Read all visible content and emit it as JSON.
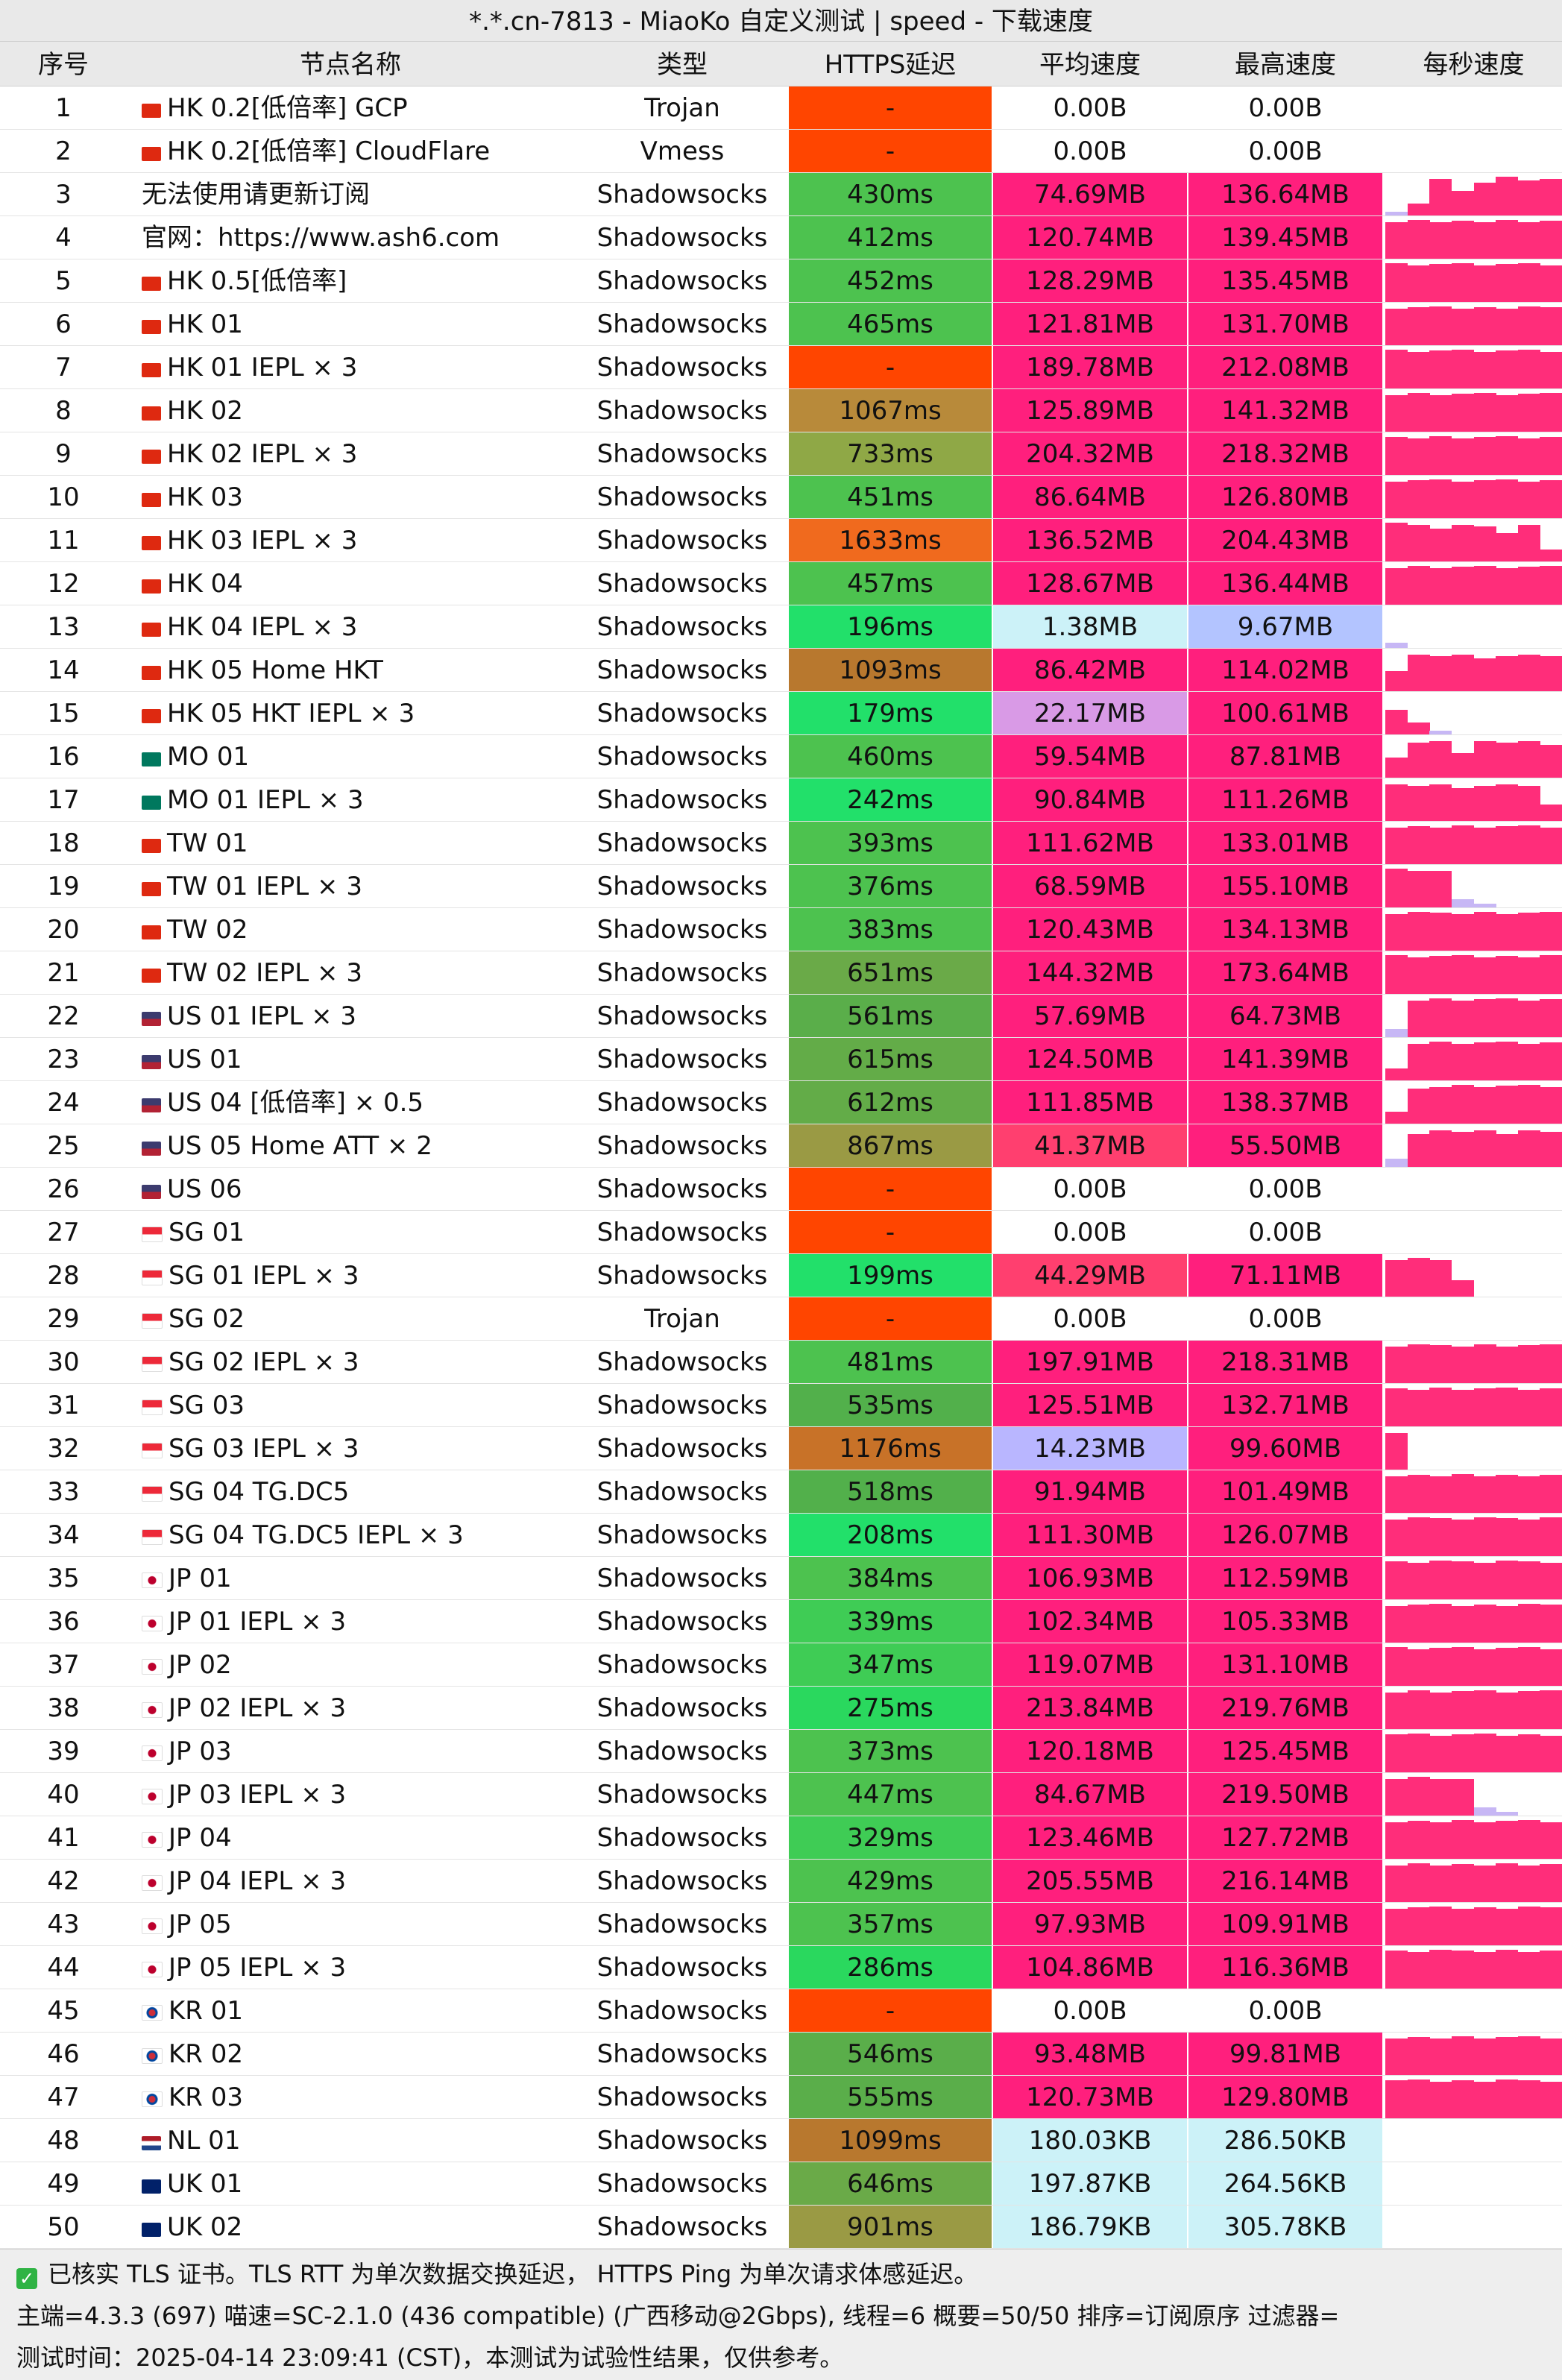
{
  "title": "*.*.cn-7813 - MiaoKo 自定义测试 | speed - 下载速度",
  "columns": [
    "序号",
    "节点名称",
    "类型",
    "HTTPS延迟",
    "平均速度",
    "最高速度",
    "每秒速度"
  ],
  "watermark": "MiaoKo",
  "colors": {
    "latency_fail": "#ff4500",
    "avg_high": "#ff1f7d",
    "avg_very_low": "#ccf2f8",
    "avg_low_purple": "#b9b6ff",
    "avg_low_violet": "#d99ae6",
    "spark": "#ff2d7a"
  },
  "rows": [
    {
      "idx": "1",
      "flag": "hk",
      "name": "HK 0.2[低倍率] GCP",
      "type": "Trojan",
      "lat": "-",
      "lat_color": "#ff4500",
      "avg": "0.00B",
      "avg_color": "#ffffff",
      "max": "0.00B",
      "max_color": "#ffffff",
      "spark": []
    },
    {
      "idx": "2",
      "flag": "hk",
      "name": "HK 0.2[低倍率] CloudFlare",
      "type": "Vmess",
      "lat": "-",
      "lat_color": "#ff4500",
      "avg": "0.00B",
      "avg_color": "#ffffff",
      "max": "0.00B",
      "max_color": "#ffffff",
      "spark": []
    },
    {
      "idx": "3",
      "flag": "",
      "name": "无法使用请更新订阅",
      "type": "Shadowsocks",
      "lat": "430ms",
      "lat_color": "#4dc24f",
      "avg": "74.69MB",
      "avg_color": "#ff1f7d",
      "max": "136.64MB",
      "max_color": "#ff1f7d",
      "spark": [
        0.1,
        0.3,
        0.9,
        0.6,
        0.8,
        0.95,
        0.85,
        0.9
      ]
    },
    {
      "idx": "4",
      "flag": "",
      "name": "官网：https://www.ash6.com",
      "type": "Shadowsocks",
      "lat": "412ms",
      "lat_color": "#4dc24f",
      "avg": "120.74MB",
      "avg_color": "#ff1f7d",
      "max": "139.45MB",
      "max_color": "#ff1f7d",
      "spark": [
        0.9,
        0.95,
        0.9,
        0.92,
        0.9,
        0.95,
        0.9,
        0.93
      ]
    },
    {
      "idx": "5",
      "flag": "hk",
      "name": "HK 0.5[低倍率]",
      "type": "Shadowsocks",
      "lat": "452ms",
      "lat_color": "#4dc24f",
      "avg": "128.29MB",
      "avg_color": "#ff1f7d",
      "max": "135.45MB",
      "max_color": "#ff1f7d",
      "spark": [
        0.95,
        0.9,
        0.92,
        0.95,
        0.9,
        0.93,
        0.95,
        0.9
      ]
    },
    {
      "idx": "6",
      "flag": "hk",
      "name": "HK 01",
      "type": "Shadowsocks",
      "lat": "465ms",
      "lat_color": "#4dc24f",
      "avg": "121.81MB",
      "avg_color": "#ff1f7d",
      "max": "131.70MB",
      "max_color": "#ff1f7d",
      "spark": [
        0.9,
        0.92,
        0.95,
        0.9,
        0.93,
        0.9,
        0.95,
        0.92
      ]
    },
    {
      "idx": "7",
      "flag": "hk",
      "name": "HK 01 IEPL × 3",
      "type": "Shadowsocks",
      "lat": "-",
      "lat_color": "#ff4500",
      "avg": "189.78MB",
      "avg_color": "#ff1f7d",
      "max": "212.08MB",
      "max_color": "#ff1f7d",
      "spark": [
        0.95,
        0.9,
        0.93,
        0.95,
        0.9,
        0.92,
        0.95,
        0.9
      ]
    },
    {
      "idx": "8",
      "flag": "hk",
      "name": "HK 02",
      "type": "Shadowsocks",
      "lat": "1067ms",
      "lat_color": "#b88a3a",
      "avg": "125.89MB",
      "avg_color": "#ff1f7d",
      "max": "141.32MB",
      "max_color": "#ff1f7d",
      "spark": [
        0.9,
        0.95,
        0.9,
        0.92,
        0.95,
        0.9,
        0.93,
        0.95
      ]
    },
    {
      "idx": "9",
      "flag": "hk",
      "name": "HK 02 IEPL × 3",
      "type": "Shadowsocks",
      "lat": "733ms",
      "lat_color": "#8fa846",
      "avg": "204.32MB",
      "avg_color": "#ff1f7d",
      "max": "218.32MB",
      "max_color": "#ff1f7d",
      "spark": [
        0.92,
        0.9,
        0.95,
        0.9,
        0.93,
        0.95,
        0.9,
        0.92
      ]
    },
    {
      "idx": "10",
      "flag": "hk",
      "name": "HK 03",
      "type": "Shadowsocks",
      "lat": "451ms",
      "lat_color": "#4dc24f",
      "avg": "86.64MB",
      "avg_color": "#ff1f7d",
      "max": "126.80MB",
      "max_color": "#ff1f7d",
      "spark": [
        0.9,
        0.92,
        0.95,
        0.9,
        0.92,
        0.95,
        0.9,
        0.93
      ]
    },
    {
      "idx": "11",
      "flag": "hk",
      "name": "HK 03 IEPL × 3",
      "type": "Shadowsocks",
      "lat": "1633ms",
      "lat_color": "#f06a1e",
      "avg": "136.52MB",
      "avg_color": "#ff1f7d",
      "max": "204.43MB",
      "max_color": "#ff1f7d",
      "spark": [
        0.95,
        0.9,
        0.8,
        0.9,
        0.85,
        0.7,
        0.9,
        0.3
      ]
    },
    {
      "idx": "12",
      "flag": "hk",
      "name": "HK 04",
      "type": "Shadowsocks",
      "lat": "457ms",
      "lat_color": "#4dc24f",
      "avg": "128.67MB",
      "avg_color": "#ff1f7d",
      "max": "136.44MB",
      "max_color": "#ff1f7d",
      "spark": [
        0.9,
        0.95,
        0.9,
        0.93,
        0.95,
        0.9,
        0.92,
        0.95
      ]
    },
    {
      "idx": "13",
      "flag": "hk",
      "name": "HK 04 IEPL × 3",
      "type": "Shadowsocks",
      "lat": "196ms",
      "lat_color": "#22e06a",
      "avg": "1.38MB",
      "avg_color": "#ccf2f8",
      "max": "9.67MB",
      "max_color": "#b3c4ff",
      "spark": [
        0.12,
        0.0,
        0.0,
        0.0,
        0.0,
        0.0,
        0.0,
        0.0
      ]
    },
    {
      "idx": "14",
      "flag": "hk",
      "name": "HK 05 Home HKT",
      "type": "Shadowsocks",
      "lat": "1093ms",
      "lat_color": "#b8782e",
      "avg": "86.42MB",
      "avg_color": "#ff1f7d",
      "max": "114.02MB",
      "max_color": "#ff1f7d",
      "spark": [
        0.5,
        0.9,
        0.85,
        0.9,
        0.8,
        0.85,
        0.9,
        0.85
      ]
    },
    {
      "idx": "15",
      "flag": "hk",
      "name": "HK 05 HKT IEPL × 3",
      "type": "Shadowsocks",
      "lat": "179ms",
      "lat_color": "#22e06a",
      "avg": "22.17MB",
      "avg_color": "#d99ae6",
      "max": "100.61MB",
      "max_color": "#ff1f7d",
      "spark": [
        0.6,
        0.3,
        0.1,
        0.0,
        0.0,
        0.0,
        0.0,
        0.0
      ]
    },
    {
      "idx": "16",
      "flag": "mo",
      "name": "MO 01",
      "type": "Shadowsocks",
      "lat": "460ms",
      "lat_color": "#4dc24f",
      "avg": "59.54MB",
      "avg_color": "#ff1f7d",
      "max": "87.81MB",
      "max_color": "#ff1f7d",
      "spark": [
        0.5,
        0.85,
        0.9,
        0.6,
        0.9,
        0.85,
        0.9,
        0.8
      ]
    },
    {
      "idx": "17",
      "flag": "mo",
      "name": "MO 01 IEPL × 3",
      "type": "Shadowsocks",
      "lat": "242ms",
      "lat_color": "#22e06a",
      "avg": "90.84MB",
      "avg_color": "#ff1f7d",
      "max": "111.26MB",
      "max_color": "#ff1f7d",
      "spark": [
        0.9,
        0.85,
        0.9,
        0.8,
        0.85,
        0.9,
        0.85,
        0.4
      ]
    },
    {
      "idx": "18",
      "flag": "tw",
      "name": "TW 01",
      "type": "Shadowsocks",
      "lat": "393ms",
      "lat_color": "#4dc24f",
      "avg": "111.62MB",
      "avg_color": "#ff1f7d",
      "max": "133.01MB",
      "max_color": "#ff1f7d",
      "spark": [
        0.9,
        0.92,
        0.9,
        0.95,
        0.9,
        0.92,
        0.95,
        0.9
      ]
    },
    {
      "idx": "19",
      "flag": "tw",
      "name": "TW 01 IEPL × 3",
      "type": "Shadowsocks",
      "lat": "376ms",
      "lat_color": "#4dc24f",
      "avg": "68.59MB",
      "avg_color": "#ff1f7d",
      "max": "155.10MB",
      "max_color": "#ff1f7d",
      "spark": [
        0.95,
        0.9,
        0.9,
        0.2,
        0.1,
        0.0,
        0.0,
        0.0
      ]
    },
    {
      "idx": "20",
      "flag": "tw",
      "name": "TW 02",
      "type": "Shadowsocks",
      "lat": "383ms",
      "lat_color": "#4dc24f",
      "avg": "120.43MB",
      "avg_color": "#ff1f7d",
      "max": "134.13MB",
      "max_color": "#ff1f7d",
      "spark": [
        0.9,
        0.95,
        0.92,
        0.9,
        0.95,
        0.9,
        0.92,
        0.95
      ]
    },
    {
      "idx": "21",
      "flag": "tw",
      "name": "TW 02 IEPL × 3",
      "type": "Shadowsocks",
      "lat": "651ms",
      "lat_color": "#6aaa48",
      "avg": "144.32MB",
      "avg_color": "#ff1f7d",
      "max": "173.64MB",
      "max_color": "#ff1f7d",
      "spark": [
        0.95,
        0.9,
        0.92,
        0.95,
        0.9,
        0.93,
        0.9,
        0.95
      ]
    },
    {
      "idx": "22",
      "flag": "us",
      "name": "US 01 IEPL × 3",
      "type": "Shadowsocks",
      "lat": "561ms",
      "lat_color": "#5aae4a",
      "avg": "57.69MB",
      "avg_color": "#ff1f7d",
      "max": "64.73MB",
      "max_color": "#ff1f7d",
      "spark": [
        0.2,
        0.9,
        0.95,
        0.9,
        0.92,
        0.95,
        0.9,
        0.93
      ]
    },
    {
      "idx": "23",
      "flag": "us",
      "name": "US 01",
      "type": "Shadowsocks",
      "lat": "615ms",
      "lat_color": "#63ac48",
      "avg": "124.50MB",
      "avg_color": "#ff1f7d",
      "max": "141.39MB",
      "max_color": "#ff1f7d",
      "spark": [
        0.3,
        0.9,
        0.95,
        0.9,
        0.93,
        0.95,
        0.9,
        0.92
      ]
    },
    {
      "idx": "24",
      "flag": "us",
      "name": "US 04 [低倍率] × 0.5",
      "type": "Shadowsocks",
      "lat": "612ms",
      "lat_color": "#63ac48",
      "avg": "111.85MB",
      "avg_color": "#ff1f7d",
      "max": "138.37MB",
      "max_color": "#ff1f7d",
      "spark": [
        0.3,
        0.85,
        0.9,
        0.95,
        0.9,
        0.92,
        0.95,
        0.9
      ]
    },
    {
      "idx": "25",
      "flag": "us",
      "name": "US 05 Home ATT × 2",
      "type": "Shadowsocks",
      "lat": "867ms",
      "lat_color": "#9a9a44",
      "avg": "41.37MB",
      "avg_color": "#ff3f6f",
      "max": "55.50MB",
      "max_color": "#ff1f7d",
      "spark": [
        0.2,
        0.8,
        0.9,
        0.85,
        0.9,
        0.8,
        0.9,
        0.85
      ]
    },
    {
      "idx": "26",
      "flag": "us",
      "name": "US 06",
      "type": "Shadowsocks",
      "lat": "-",
      "lat_color": "#ff4500",
      "avg": "0.00B",
      "avg_color": "#ffffff",
      "max": "0.00B",
      "max_color": "#ffffff",
      "spark": []
    },
    {
      "idx": "27",
      "flag": "sg",
      "name": "SG 01",
      "type": "Shadowsocks",
      "lat": "-",
      "lat_color": "#ff4500",
      "avg": "0.00B",
      "avg_color": "#ffffff",
      "max": "0.00B",
      "max_color": "#ffffff",
      "spark": []
    },
    {
      "idx": "28",
      "flag": "sg",
      "name": "SG 01 IEPL × 3",
      "type": "Shadowsocks",
      "lat": "199ms",
      "lat_color": "#22e06a",
      "avg": "44.29MB",
      "avg_color": "#ff3f6f",
      "max": "71.11MB",
      "max_color": "#ff1f7d",
      "spark": [
        0.9,
        0.95,
        0.9,
        0.4,
        0.0,
        0.0,
        0.0,
        0.0
      ]
    },
    {
      "idx": "29",
      "flag": "sg",
      "name": "SG 02",
      "type": "Trojan",
      "lat": "-",
      "lat_color": "#ff4500",
      "avg": "0.00B",
      "avg_color": "#ffffff",
      "max": "0.00B",
      "max_color": "#ffffff",
      "spark": []
    },
    {
      "idx": "30",
      "flag": "sg",
      "name": "SG 02 IEPL × 3",
      "type": "Shadowsocks",
      "lat": "481ms",
      "lat_color": "#4dc24f",
      "avg": "197.91MB",
      "avg_color": "#ff1f7d",
      "max": "218.31MB",
      "max_color": "#ff1f7d",
      "spark": [
        0.9,
        0.95,
        0.92,
        0.9,
        0.95,
        0.9,
        0.92,
        0.95
      ]
    },
    {
      "idx": "31",
      "flag": "sg",
      "name": "SG 03",
      "type": "Shadowsocks",
      "lat": "535ms",
      "lat_color": "#52b04b",
      "avg": "125.51MB",
      "avg_color": "#ff1f7d",
      "max": "132.71MB",
      "max_color": "#ff1f7d",
      "spark": [
        0.92,
        0.9,
        0.95,
        0.9,
        0.92,
        0.95,
        0.9,
        0.92
      ]
    },
    {
      "idx": "32",
      "flag": "sg",
      "name": "SG 03 IEPL × 3",
      "type": "Shadowsocks",
      "lat": "1176ms",
      "lat_color": "#c87228",
      "avg": "14.23MB",
      "avg_color": "#b9b6ff",
      "max": "99.60MB",
      "max_color": "#ff1f7d",
      "spark": [
        0.9,
        0.0,
        0.0,
        0.0,
        0.0,
        0.0,
        0.0,
        0.0
      ]
    },
    {
      "idx": "33",
      "flag": "sg",
      "name": "SG 04 TG.DC5",
      "type": "Shadowsocks",
      "lat": "518ms",
      "lat_color": "#52b04b",
      "avg": "91.94MB",
      "avg_color": "#ff1f7d",
      "max": "101.49MB",
      "max_color": "#ff1f7d",
      "spark": [
        0.9,
        0.92,
        0.9,
        0.95,
        0.9,
        0.92,
        0.9,
        0.93
      ]
    },
    {
      "idx": "34",
      "flag": "sg",
      "name": "SG 04 TG.DC5 IEPL × 3",
      "type": "Shadowsocks",
      "lat": "208ms",
      "lat_color": "#22e06a",
      "avg": "111.30MB",
      "avg_color": "#ff1f7d",
      "max": "126.07MB",
      "max_color": "#ff1f7d",
      "spark": [
        0.9,
        0.95,
        0.92,
        0.9,
        0.95,
        0.92,
        0.9,
        0.95
      ]
    },
    {
      "idx": "35",
      "flag": "jp",
      "name": "JP 01",
      "type": "Shadowsocks",
      "lat": "384ms",
      "lat_color": "#4dc24f",
      "avg": "106.93MB",
      "avg_color": "#ff1f7d",
      "max": "112.59MB",
      "max_color": "#ff1f7d",
      "spark": [
        0.92,
        0.9,
        0.95,
        0.92,
        0.9,
        0.95,
        0.92,
        0.9
      ]
    },
    {
      "idx": "36",
      "flag": "jp",
      "name": "JP 01 IEPL × 3",
      "type": "Shadowsocks",
      "lat": "339ms",
      "lat_color": "#3fcc55",
      "avg": "102.34MB",
      "avg_color": "#ff1f7d",
      "max": "105.33MB",
      "max_color": "#ff1f7d",
      "spark": [
        0.9,
        0.92,
        0.95,
        0.9,
        0.92,
        0.9,
        0.95,
        0.92
      ]
    },
    {
      "idx": "37",
      "flag": "jp",
      "name": "JP 02",
      "type": "Shadowsocks",
      "lat": "347ms",
      "lat_color": "#3fcc55",
      "avg": "119.07MB",
      "avg_color": "#ff1f7d",
      "max": "131.10MB",
      "max_color": "#ff1f7d",
      "spark": [
        0.95,
        0.9,
        0.92,
        0.95,
        0.9,
        0.92,
        0.95,
        0.9
      ]
    },
    {
      "idx": "38",
      "flag": "jp",
      "name": "JP 02 IEPL × 3",
      "type": "Shadowsocks",
      "lat": "275ms",
      "lat_color": "#2ad85e",
      "avg": "213.84MB",
      "avg_color": "#ff1f7d",
      "max": "219.76MB",
      "max_color": "#ff1f7d",
      "spark": [
        0.9,
        0.95,
        0.9,
        0.92,
        0.95,
        0.9,
        0.92,
        0.95
      ]
    },
    {
      "idx": "39",
      "flag": "jp",
      "name": "JP 03",
      "type": "Shadowsocks",
      "lat": "373ms",
      "lat_color": "#4dc24f",
      "avg": "120.18MB",
      "avg_color": "#ff1f7d",
      "max": "125.45MB",
      "max_color": "#ff1f7d",
      "spark": [
        0.92,
        0.95,
        0.9,
        0.92,
        0.95,
        0.9,
        0.93,
        0.9
      ]
    },
    {
      "idx": "40",
      "flag": "jp",
      "name": "JP 03 IEPL × 3",
      "type": "Shadowsocks",
      "lat": "447ms",
      "lat_color": "#4dc24f",
      "avg": "84.67MB",
      "avg_color": "#ff1f7d",
      "max": "219.50MB",
      "max_color": "#ff1f7d",
      "spark": [
        0.9,
        0.95,
        0.9,
        0.9,
        0.2,
        0.1,
        0.0,
        0.0
      ]
    },
    {
      "idx": "41",
      "flag": "jp",
      "name": "JP 04",
      "type": "Shadowsocks",
      "lat": "329ms",
      "lat_color": "#3fcc55",
      "avg": "123.46MB",
      "avg_color": "#ff1f7d",
      "max": "127.72MB",
      "max_color": "#ff1f7d",
      "spark": [
        0.9,
        0.92,
        0.9,
        0.95,
        0.9,
        0.92,
        0.95,
        0.9
      ]
    },
    {
      "idx": "42",
      "flag": "jp",
      "name": "JP 04 IEPL × 3",
      "type": "Shadowsocks",
      "lat": "429ms",
      "lat_color": "#4dc24f",
      "avg": "205.55MB",
      "avg_color": "#ff1f7d",
      "max": "216.14MB",
      "max_color": "#ff1f7d",
      "spark": [
        0.9,
        0.95,
        0.9,
        0.92,
        0.9,
        0.95,
        0.9,
        0.92
      ]
    },
    {
      "idx": "43",
      "flag": "jp",
      "name": "JP 05",
      "type": "Shadowsocks",
      "lat": "357ms",
      "lat_color": "#4dc24f",
      "avg": "97.93MB",
      "avg_color": "#ff1f7d",
      "max": "109.91MB",
      "max_color": "#ff1f7d",
      "spark": [
        0.9,
        0.92,
        0.95,
        0.9,
        0.92,
        0.9,
        0.95,
        0.92
      ]
    },
    {
      "idx": "44",
      "flag": "jp",
      "name": "JP 05 IEPL × 3",
      "type": "Shadowsocks",
      "lat": "286ms",
      "lat_color": "#2ad85e",
      "avg": "104.86MB",
      "avg_color": "#ff1f7d",
      "max": "116.36MB",
      "max_color": "#ff1f7d",
      "spark": [
        0.92,
        0.9,
        0.95,
        0.92,
        0.9,
        0.95,
        0.9,
        0.92
      ]
    },
    {
      "idx": "45",
      "flag": "kr",
      "name": "KR 01",
      "type": "Shadowsocks",
      "lat": "-",
      "lat_color": "#ff4500",
      "avg": "0.00B",
      "avg_color": "#ffffff",
      "max": "0.00B",
      "max_color": "#ffffff",
      "spark": []
    },
    {
      "idx": "46",
      "flag": "kr",
      "name": "KR 02",
      "type": "Shadowsocks",
      "lat": "546ms",
      "lat_color": "#5aae4a",
      "avg": "93.48MB",
      "avg_color": "#ff1f7d",
      "max": "99.81MB",
      "max_color": "#ff1f7d",
      "spark": [
        0.9,
        0.92,
        0.9,
        0.95,
        0.9,
        0.92,
        0.95,
        0.9
      ]
    },
    {
      "idx": "47",
      "flag": "kr",
      "name": "KR 03",
      "type": "Shadowsocks",
      "lat": "555ms",
      "lat_color": "#5aae4a",
      "avg": "120.73MB",
      "avg_color": "#ff1f7d",
      "max": "129.80MB",
      "max_color": "#ff1f7d",
      "spark": [
        0.92,
        0.95,
        0.9,
        0.92,
        0.9,
        0.95,
        0.92,
        0.9
      ]
    },
    {
      "idx": "48",
      "flag": "nl",
      "name": "NL 01",
      "type": "Shadowsocks",
      "lat": "1099ms",
      "lat_color": "#b8782e",
      "avg": "180.03KB",
      "avg_color": "#ccf2f8",
      "max": "286.50KB",
      "max_color": "#ccf2f8",
      "spark": []
    },
    {
      "idx": "49",
      "flag": "uk",
      "name": "UK 01",
      "type": "Shadowsocks",
      "lat": "646ms",
      "lat_color": "#6aaa48",
      "avg": "197.87KB",
      "avg_color": "#ccf2f8",
      "max": "264.56KB",
      "max_color": "#ccf2f8",
      "spark": []
    },
    {
      "idx": "50",
      "flag": "uk",
      "name": "UK 02",
      "type": "Shadowsocks",
      "lat": "901ms",
      "lat_color": "#9a9a44",
      "avg": "186.79KB",
      "avg_color": "#ccf2f8",
      "max": "305.78KB",
      "max_color": "#ccf2f8",
      "spark": []
    }
  ],
  "footer": {
    "line1": "已核实 TLS 证书。TLS RTT 为单次数据交换延迟， HTTPS Ping 为单次请求体感延迟。",
    "line2": "主端=4.3.3 (697) 喵速=SC-2.1.0 (436 compatible) (广西移动@2Gbps), 线程=6 概要=50/50 排序=订阅原序 过滤器=",
    "line3": "测试时间：2025-04-14 23:09:41 (CST)，本测试为试验性结果，仅供参考。"
  }
}
